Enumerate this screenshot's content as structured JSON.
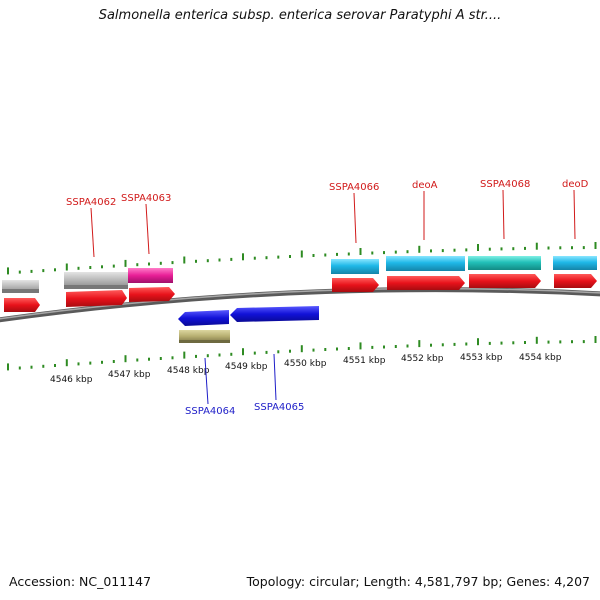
{
  "title": "Salmonella enterica subsp. enterica serovar Paratyphi A str....",
  "accession_label": "Accession: NC_011147",
  "stats_label": "Topology: circular; Length: 4,581,797 bp; Genes: 4,207",
  "scale_labels": [
    "4546 kbp",
    "4547 kbp",
    "4548 kbp",
    "4549 kbp",
    "4550 kbp",
    "4551 kbp",
    "4552 kbp",
    "4553 kbp",
    "4554 kbp"
  ],
  "gene_labels_top": [
    "SSPA4062",
    "SSPA4063",
    "SSPA4066",
    "deoA",
    "SSPA4068",
    "deoD"
  ],
  "gene_labels_bottom": [
    "SSPA4064",
    "SSPA4065"
  ],
  "colors": {
    "forward_cds": "#e8121b",
    "reverse_cds": "#1212d8",
    "feature_cyan": "#1fb8e8",
    "feature_teal": "#22c0b8",
    "feature_gray": "#b8b8b8",
    "feature_pink": "#e81e96",
    "feature_khaki": "#b8b072",
    "tick_green": "#2e8b22",
    "backbone": "#808080"
  }
}
